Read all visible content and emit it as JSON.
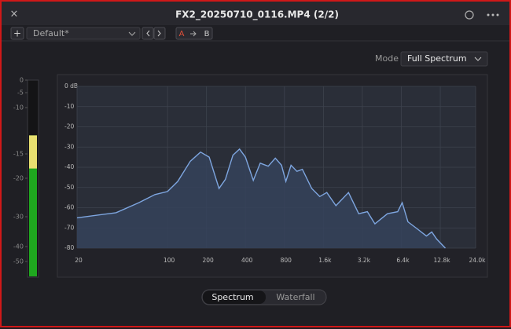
{
  "window": {
    "title": "FX2_20250710_0116.MP4 (2/2)",
    "preset": "Default*",
    "compare_a": "A",
    "compare_b": "B",
    "mode_label": "Mode",
    "mode_value": "Full Spectrum",
    "view_tabs": [
      "Spectrum",
      "Waterfall"
    ],
    "selected_tab": "Spectrum"
  },
  "meter": {
    "ticks": [
      0,
      -5,
      -10,
      -15,
      -20,
      -30,
      -40,
      -50
    ],
    "level": -13,
    "yellow_from": -18
  },
  "chart_data": {
    "type": "area",
    "color": "#7ea6e0",
    "x_scale": "log",
    "grid": true,
    "x": [
      20,
      40,
      60,
      80,
      100,
      120,
      150,
      180,
      210,
      250,
      280,
      320,
      360,
      400,
      460,
      520,
      600,
      680,
      760,
      820,
      900,
      1000,
      1100,
      1300,
      1500,
      1700,
      2000,
      2500,
      3000,
      3500,
      4000,
      5000,
      6000,
      6500,
      7200,
      8500,
      10000,
      11000,
      12000,
      14000
    ],
    "values": [
      -65,
      -62.5,
      -57.5,
      -53.5,
      -52,
      -47,
      -37,
      -32.5,
      -35,
      -50.5,
      -46,
      -34,
      -31,
      -35,
      -46.5,
      -38,
      -39.5,
      -35.5,
      -39,
      -47,
      -39,
      -42,
      -41,
      -50.5,
      -54.5,
      -52.5,
      -59,
      -52.5,
      -63,
      -62,
      -68,
      -63,
      -62,
      -57.5,
      -67,
      -70.5,
      -74,
      -72,
      -75.5,
      -80
    ],
    "xlim": [
      20,
      24000
    ],
    "ylim": [
      -80,
      0
    ],
    "xticks": [
      20,
      100,
      200,
      400,
      800,
      {
        "value": 1600,
        "label": "1.6k"
      },
      {
        "value": 3200,
        "label": "3.2k"
      },
      {
        "value": 6400,
        "label": "6.4k"
      },
      {
        "value": 12800,
        "label": "12.8k"
      },
      {
        "value": 24000,
        "label": "24.0k"
      }
    ],
    "yticks": [
      {
        "value": 0,
        "label": "0 dB"
      },
      -10,
      -20,
      -30,
      -40,
      -50,
      -60,
      -70,
      -80
    ]
  }
}
